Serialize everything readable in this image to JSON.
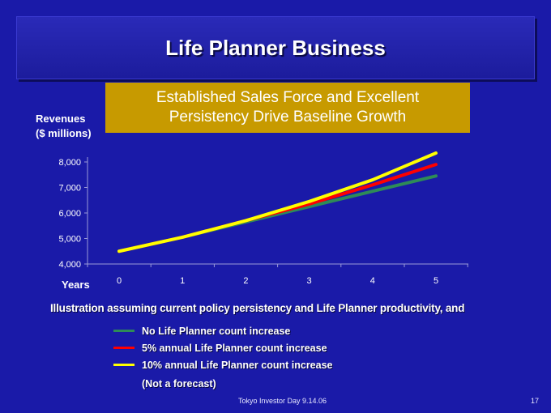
{
  "slide": {
    "title": "Life Planner Business",
    "subtitle_line1": "Established Sales Force and Excellent",
    "subtitle_line2": "Persistency Drive Baseline Growth",
    "note": "Illustration assuming current policy persistency and Life Planner productivity, and",
    "disclaimer": "(Not a forecast)",
    "footer": "Tokyo Investor Day 9.14.06",
    "page_number": "17"
  },
  "chart_data": {
    "type": "line",
    "ylabel_line1": "Revenues",
    "ylabel_line2": "($ millions)",
    "xlabel": "Years",
    "x": [
      0,
      1,
      2,
      3,
      4,
      5
    ],
    "x_tick_labels": [
      "0",
      "1",
      "2",
      "3",
      "4",
      "5"
    ],
    "ylim": [
      4000,
      8000
    ],
    "y_ticks": [
      4000,
      5000,
      6000,
      7000,
      8000
    ],
    "y_tick_labels": [
      "4,000",
      "5,000",
      "6,000",
      "7,000",
      "8,000"
    ],
    "grid": false,
    "legend_position": "bottom",
    "series": [
      {
        "name": "No Life Planner count increase",
        "color": "#2e8b57",
        "values": [
          4500,
          5050,
          5650,
          6250,
          6850,
          7450
        ]
      },
      {
        "name": "5% annual Life Planner count increase",
        "color": "#ff0000",
        "values": [
          4500,
          5050,
          5700,
          6350,
          7100,
          7900
        ]
      },
      {
        "name": "10% annual Life Planner count increase",
        "color": "#ffff00",
        "values": [
          4500,
          5050,
          5700,
          6450,
          7300,
          8350
        ]
      }
    ]
  }
}
